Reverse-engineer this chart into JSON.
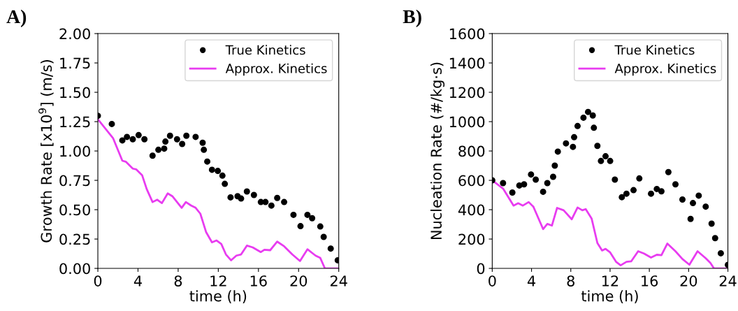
{
  "chart_data": [
    {
      "type": "line",
      "title": "A)",
      "xlabel": "time (h)",
      "ylabel": "Growth Rate [x10$^{9}$] (m/s)",
      "xlim": [
        0,
        24
      ],
      "xticks": [
        0,
        4,
        8,
        12,
        16,
        20,
        24
      ],
      "ylim": [
        0,
        2.0
      ],
      "yticks": [
        {
          "value": 0,
          "label": "0.00"
        },
        {
          "value": 0.25,
          "label": "0.25"
        },
        {
          "value": 0.5,
          "label": "0.50"
        },
        {
          "value": 0.75,
          "label": "0.75"
        },
        {
          "value": 1.0,
          "label": "1.00"
        },
        {
          "value": 1.25,
          "label": "1.25"
        },
        {
          "value": 1.5,
          "label": "1.50"
        },
        {
          "value": 1.75,
          "label": "1.75"
        },
        {
          "value": 2.0,
          "label": "2.00"
        }
      ],
      "legend": "top right",
      "grid": false,
      "series": [
        {
          "name": "True Kinetics",
          "type": "scatter",
          "marker": "circle",
          "color": "#000000",
          "x": [
            0,
            1.39,
            2.44,
            2.9,
            3.48,
            4.06,
            4.64,
            5.45,
            6.03,
            6.61,
            6.73,
            7.19,
            7.89,
            8.4,
            8.82,
            9.74,
            10.44,
            10.56,
            10.9,
            11.37,
            11.95,
            12.41,
            12.65,
            13.22,
            13.92,
            14.27,
            14.85,
            15.55,
            16.24,
            16.7,
            17.29,
            17.87,
            18.56,
            19.49,
            20.19,
            20.88,
            21.35,
            22.16,
            22.5,
            23.2,
            23.9
          ],
          "values": [
            1.3,
            1.23,
            1.09,
            1.12,
            1.1,
            1.135,
            1.1,
            0.96,
            1.01,
            1.02,
            1.08,
            1.13,
            1.1,
            1.06,
            1.13,
            1.12,
            1.07,
            1.01,
            0.91,
            0.84,
            0.83,
            0.79,
            0.72,
            0.605,
            0.615,
            0.595,
            0.655,
            0.625,
            0.565,
            0.565,
            0.535,
            0.6,
            0.565,
            0.456,
            0.36,
            0.456,
            0.427,
            0.357,
            0.268,
            0.169,
            0.069
          ]
        },
        {
          "name": "Approx. Kinetics",
          "color": "#e83cf0",
          "x": [
            0,
            1.51,
            2.44,
            2.78,
            3.48,
            3.83,
            4.41,
            4.87,
            5.45,
            5.92,
            6.38,
            6.96,
            7.42,
            8.35,
            8.77,
            9.28,
            9.74,
            10.21,
            10.79,
            11.37,
            11.83,
            12.3,
            12.76,
            13.27,
            13.8,
            14.27,
            14.85,
            15.43,
            16.24,
            16.59,
            17.17,
            17.87,
            18.56,
            19.37,
            20.14,
            20.88,
            21.69,
            22.16,
            22.62,
            23.9
          ],
          "values": [
            1.27,
            1.11,
            0.917,
            0.909,
            0.85,
            0.843,
            0.794,
            0.675,
            0.565,
            0.585,
            0.556,
            0.639,
            0.615,
            0.516,
            0.565,
            0.536,
            0.516,
            0.466,
            0.308,
            0.222,
            0.238,
            0.208,
            0.119,
            0.069,
            0.109,
            0.119,
            0.194,
            0.179,
            0.139,
            0.159,
            0.155,
            0.228,
            0.188,
            0.119,
            0.063,
            0.163,
            0.109,
            0.089,
            0,
            0
          ]
        }
      ]
    },
    {
      "type": "line",
      "title": "B)",
      "xlabel": "time (h)",
      "ylabel": "Nucleation Rate (#/kg·s)",
      "xlim": [
        0,
        24
      ],
      "xticks": [
        0,
        4,
        8,
        12,
        16,
        20,
        24
      ],
      "ylim": [
        0,
        1600
      ],
      "yticks": [
        0,
        200,
        400,
        600,
        800,
        1000,
        1200,
        1400,
        1600
      ],
      "legend": "top right",
      "grid": false,
      "series": [
        {
          "name": "True Kinetics",
          "type": "scatter",
          "marker": "circle",
          "color": "#000000",
          "x": [
            0,
            1.1,
            2.05,
            2.76,
            3.24,
            3.95,
            4.43,
            5.18,
            5.61,
            6.2,
            6.37,
            6.68,
            7.51,
            8.22,
            8.34,
            8.69,
            9.29,
            9.76,
            10.24,
            10.35,
            10.71,
            11.07,
            11.54,
            12.01,
            12.49,
            13.2,
            13.67,
            14.39,
            14.98,
            16.17,
            16.76,
            17.23,
            17.94,
            18.66,
            19.37,
            20.2,
            20.44,
            21.03,
            21.74,
            22.34,
            22.7,
            23.28,
            24.0
          ],
          "values": [
            600,
            581,
            517,
            565,
            573,
            640,
            605,
            522,
            581,
            624,
            700,
            796,
            852,
            828,
            894,
            970,
            1027,
            1066,
            1042,
            958,
            835,
            732,
            764,
            732,
            605,
            485,
            509,
            533,
            613,
            509,
            541,
            525,
            656,
            573,
            469,
            337,
            445,
            496,
            421,
            305,
            206,
            103,
            24
          ]
        },
        {
          "name": "Approx. Kinetics",
          "color": "#e83cf0",
          "x": [
            0,
            1.1,
            2.17,
            2.64,
            3.12,
            3.71,
            4.19,
            5.18,
            5.61,
            6.08,
            6.6,
            7.27,
            8.1,
            8.69,
            9.17,
            9.52,
            10.12,
            10.71,
            11.19,
            11.54,
            12.01,
            12.61,
            13.08,
            13.67,
            14.15,
            14.86,
            15.45,
            16.17,
            16.76,
            17.23,
            17.83,
            18.66,
            19.37,
            20.08,
            20.91,
            21.74,
            22.22,
            22.58,
            24
          ],
          "values": [
            600,
            544,
            428,
            444,
            428,
            452,
            420,
            268,
            303,
            292,
            412,
            396,
            335,
            415,
            396,
            404,
            340,
            173,
            122,
            133,
            109,
            45,
            21,
            45,
            48,
            117,
            101,
            74,
            93,
            90,
            169,
            117,
            64,
            25,
            117,
            69,
            37,
            0,
            0
          ]
        }
      ]
    }
  ]
}
